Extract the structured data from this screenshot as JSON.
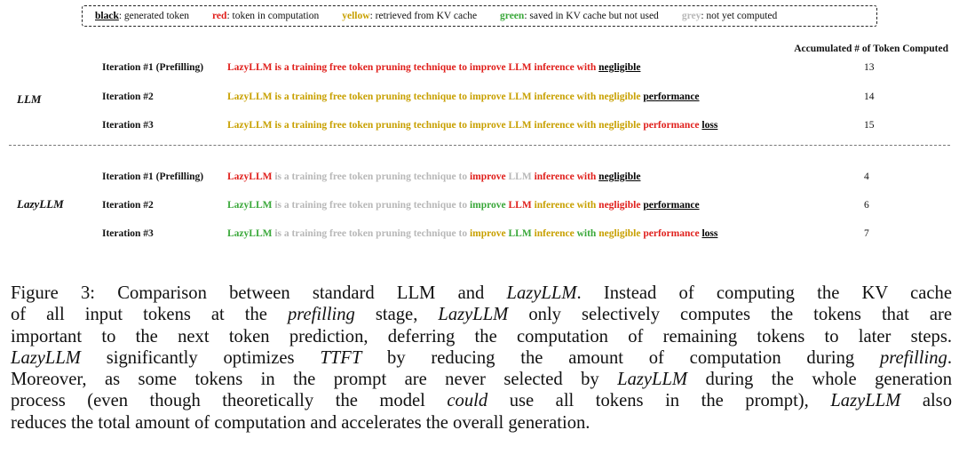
{
  "legend": [
    {
      "key": "black",
      "desc": ": generated token",
      "color": "#000000"
    },
    {
      "key": "red",
      "desc": ": token in computation",
      "color": "#e0201c"
    },
    {
      "key": "yellow",
      "desc": ": retrieved from KV cache",
      "color": "#c8a000"
    },
    {
      "key": "green",
      "desc": ": saved in KV cache but not used",
      "color": "#3aa83a"
    },
    {
      "key": "grey",
      "desc": ": not yet computed",
      "color": "#b8b8b8"
    }
  ],
  "column_header": "Accumulated # of Token Computed",
  "groups": [
    {
      "label": "LLM",
      "rows": [
        {
          "iteration": "Iteration #1 (Prefilling)",
          "count": "13",
          "segments": [
            {
              "text": "LazyLLM is a training free token pruning technique to improve LLM inference with",
              "color": "red"
            },
            {
              "text": "negligible",
              "color": "black"
            }
          ]
        },
        {
          "iteration": "Iteration #2",
          "count": "14",
          "segments": [
            {
              "text": "LazyLLM is a training free token pruning technique to improve LLM inference with negligible",
              "color": "yellow"
            },
            {
              "text": "performance",
              "color": "black"
            }
          ]
        },
        {
          "iteration": "Iteration #3",
          "count": "15",
          "segments": [
            {
              "text": "LazyLLM is a training free token pruning technique to improve LLM inference with negligible",
              "color": "yellow"
            },
            {
              "text": "performance",
              "color": "red"
            },
            {
              "text": "loss",
              "color": "black"
            }
          ]
        }
      ]
    },
    {
      "label": "LazyLLM",
      "rows": [
        {
          "iteration": "Iteration #1 (Prefilling)",
          "count": "4",
          "segments": [
            {
              "text": "LazyLLM",
              "color": "red"
            },
            {
              "text": "is a training free token pruning technique to",
              "color": "grey"
            },
            {
              "text": "improve",
              "color": "red"
            },
            {
              "text": "LLM",
              "color": "grey"
            },
            {
              "text": "inference with",
              "color": "red"
            },
            {
              "text": "negligible",
              "color": "black"
            }
          ]
        },
        {
          "iteration": "Iteration #2",
          "count": "6",
          "segments": [
            {
              "text": "LazyLLM",
              "color": "green"
            },
            {
              "text": "is a training free token pruning technique to",
              "color": "grey"
            },
            {
              "text": "improve",
              "color": "green"
            },
            {
              "text": "LLM",
              "color": "red"
            },
            {
              "text": "inference with",
              "color": "yellow"
            },
            {
              "text": "negligible",
              "color": "red"
            },
            {
              "text": "performance",
              "color": "black"
            }
          ]
        },
        {
          "iteration": "Iteration #3",
          "count": "7",
          "segments": [
            {
              "text": "LazyLLM",
              "color": "green"
            },
            {
              "text": "is a training free token pruning technique to",
              "color": "grey"
            },
            {
              "text": "improve",
              "color": "yellow"
            },
            {
              "text": "LLM",
              "color": "green"
            },
            {
              "text": "inference",
              "color": "yellow"
            },
            {
              "text": "with",
              "color": "green"
            },
            {
              "text": "negligible",
              "color": "yellow"
            },
            {
              "text": "performance",
              "color": "red"
            },
            {
              "text": "loss",
              "color": "black"
            }
          ]
        }
      ]
    }
  ],
  "caption": {
    "lines": [
      [
        {
          "t": "Figure 3: Comparison between standard LLM and "
        },
        {
          "t": "LazyLLM",
          "i": true
        },
        {
          "t": ". Instead of computing the KV cache"
        }
      ],
      [
        {
          "t": "of all input tokens at the "
        },
        {
          "t": "prefilling",
          "i": true
        },
        {
          "t": " stage, "
        },
        {
          "t": "LazyLLM",
          "i": true
        },
        {
          "t": " only selectively computes the tokens that are"
        }
      ],
      [
        {
          "t": "important to the next token prediction, deferring the computation of remaining tokens to later steps."
        }
      ],
      [
        {
          "t": "LazyLLM",
          "i": true
        },
        {
          "t": " significantly optimizes "
        },
        {
          "t": "TTFT",
          "i": true
        },
        {
          "t": " by reducing the amount of computation during "
        },
        {
          "t": "prefilling",
          "i": true
        },
        {
          "t": "."
        }
      ],
      [
        {
          "t": "Moreover, as some tokens in the prompt are never selected by "
        },
        {
          "t": "LazyLLM",
          "i": true
        },
        {
          "t": " during the whole generation"
        }
      ],
      [
        {
          "t": "process (even though theoretically the model "
        },
        {
          "t": "could",
          "i": true
        },
        {
          "t": " use all tokens in the prompt), "
        },
        {
          "t": "LazyLLM",
          "i": true
        },
        {
          "t": " also"
        }
      ],
      [
        {
          "t": "reduces the total amount of computation and accelerates the overall generation."
        }
      ]
    ]
  }
}
